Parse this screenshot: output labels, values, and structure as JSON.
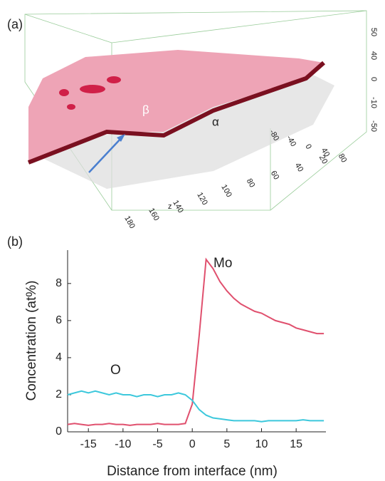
{
  "panel_a": {
    "label": "(a)",
    "phase_beta": "β",
    "phase_alpha": "α",
    "axis_right": [
      "50",
      "40",
      "0",
      "-10",
      "-50"
    ],
    "axis_side": [
      "-80",
      "-40",
      "0",
      "40",
      "80"
    ],
    "axis_bottom": [
      "180",
      "160",
      "140",
      "120",
      "100",
      "80",
      "60",
      "40",
      "20"
    ],
    "axis_bottom_name": "z"
  },
  "panel_b_label": "(b)",
  "chart_data": {
    "type": "line",
    "xlabel": "Distance from interface (nm)",
    "ylabel": "Concentration (at%)",
    "x": [
      -18,
      -17,
      -16,
      -15,
      -14,
      -13,
      -12,
      -11,
      -10,
      -9,
      -8,
      -7,
      -6,
      -5,
      -4,
      -3,
      -2,
      -1,
      0,
      1,
      2,
      3,
      4,
      5,
      6,
      7,
      8,
      9,
      10,
      11,
      12,
      13,
      14,
      15,
      16,
      17,
      18,
      19
    ],
    "series": [
      {
        "name": "Mo",
        "color": "#e0506e",
        "values": [
          0.4,
          0.45,
          0.4,
          0.35,
          0.4,
          0.4,
          0.45,
          0.4,
          0.4,
          0.35,
          0.4,
          0.4,
          0.4,
          0.45,
          0.4,
          0.4,
          0.4,
          0.45,
          1.5,
          5.2,
          9.3,
          8.8,
          8.1,
          7.6,
          7.2,
          6.9,
          6.7,
          6.5,
          6.4,
          6.2,
          6.0,
          5.9,
          5.8,
          5.6,
          5.5,
          5.4,
          5.3,
          5.3
        ]
      },
      {
        "name": "O",
        "color": "#3cc8dc",
        "values": [
          2.0,
          2.1,
          2.2,
          2.1,
          2.2,
          2.1,
          2.0,
          2.1,
          2.0,
          2.0,
          1.9,
          2.0,
          2.0,
          1.9,
          2.0,
          2.0,
          2.1,
          2.0,
          1.7,
          1.2,
          0.9,
          0.75,
          0.7,
          0.65,
          0.6,
          0.6,
          0.6,
          0.6,
          0.55,
          0.6,
          0.6,
          0.6,
          0.6,
          0.6,
          0.65,
          0.6,
          0.6,
          0.6
        ]
      }
    ],
    "xlim": [
      -18,
      19.3
    ],
    "ylim": [
      0,
      9.8
    ],
    "xticks": [
      -15,
      -10,
      -5,
      0,
      5,
      10,
      15
    ],
    "yticks": [
      0,
      2,
      4,
      6,
      8
    ]
  }
}
